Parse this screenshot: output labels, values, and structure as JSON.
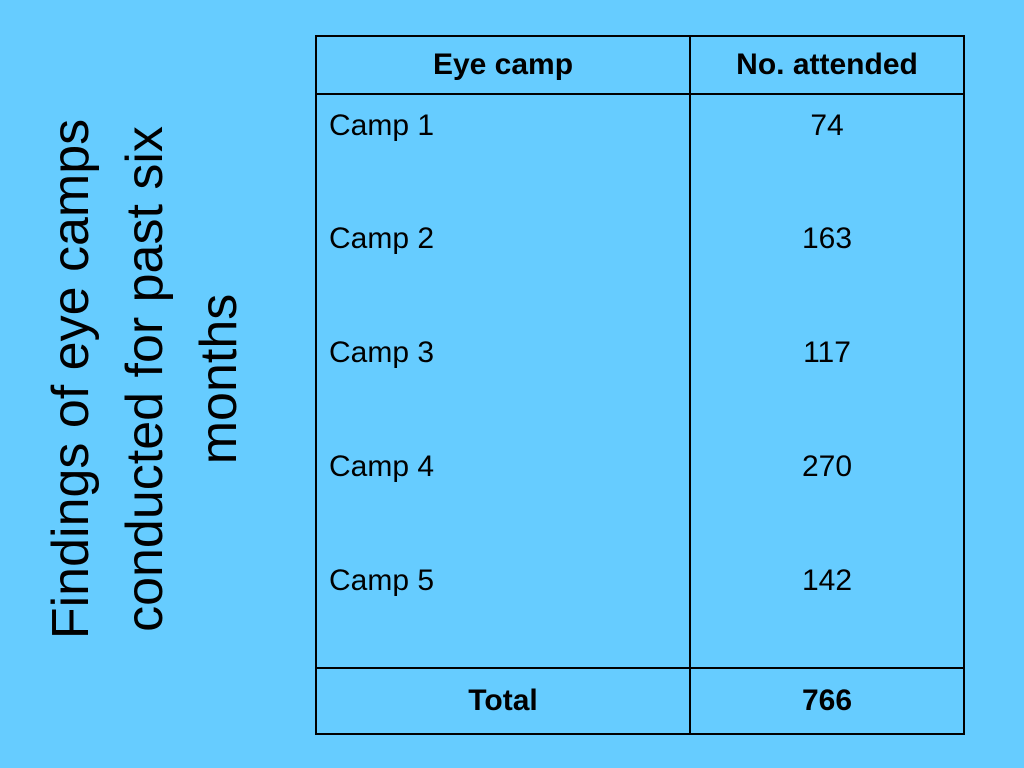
{
  "title_lines": [
    "Findings of eye camps",
    "conducted for past six",
    "months"
  ],
  "table": {
    "header": [
      "Eye camp",
      "No. attended"
    ],
    "rows": [
      [
        "Camp 1",
        74
      ],
      [
        "Camp 2",
        163
      ],
      [
        "Camp 3",
        117
      ],
      [
        "Camp 4",
        270
      ],
      [
        "Camp 5",
        142
      ]
    ],
    "total": [
      "Total",
      766
    ]
  }
}
